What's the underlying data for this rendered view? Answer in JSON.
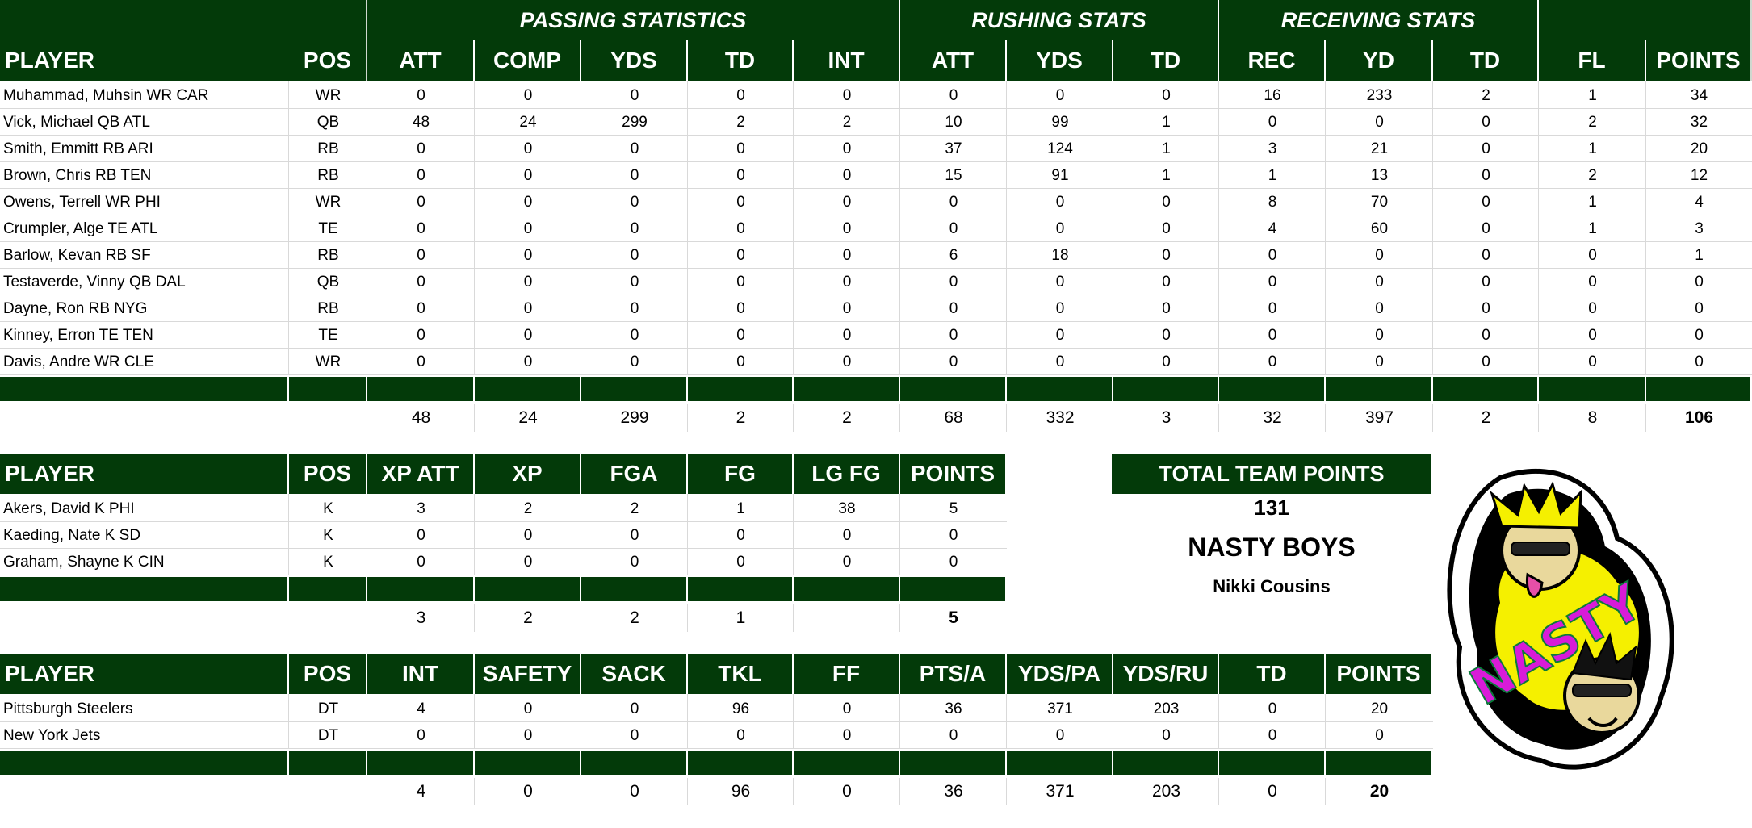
{
  "offense": {
    "groups": {
      "passing": "PASSING STATISTICS",
      "rushing": "RUSHING STATS",
      "receiving": "RECEIVING STATS"
    },
    "headers": [
      "PLAYER",
      "POS",
      "ATT",
      "COMP",
      "YDS",
      "TD",
      "INT",
      "ATT",
      "YDS",
      "TD",
      "REC",
      "YD",
      "TD",
      "FL",
      "POINTS"
    ],
    "rows": [
      [
        "Muhammad, Muhsin WR CAR",
        "WR",
        "0",
        "0",
        "0",
        "0",
        "0",
        "0",
        "0",
        "0",
        "16",
        "233",
        "2",
        "1",
        "34"
      ],
      [
        "Vick, Michael QB ATL",
        "QB",
        "48",
        "24",
        "299",
        "2",
        "2",
        "10",
        "99",
        "1",
        "0",
        "0",
        "0",
        "2",
        "32"
      ],
      [
        "Smith, Emmitt RB ARI",
        "RB",
        "0",
        "0",
        "0",
        "0",
        "0",
        "37",
        "124",
        "1",
        "3",
        "21",
        "0",
        "1",
        "20"
      ],
      [
        "Brown, Chris RB TEN",
        "RB",
        "0",
        "0",
        "0",
        "0",
        "0",
        "15",
        "91",
        "1",
        "1",
        "13",
        "0",
        "2",
        "12"
      ],
      [
        "Owens, Terrell WR PHI",
        "WR",
        "0",
        "0",
        "0",
        "0",
        "0",
        "0",
        "0",
        "0",
        "8",
        "70",
        "0",
        "1",
        "4"
      ],
      [
        "Crumpler, Alge TE ATL",
        "TE",
        "0",
        "0",
        "0",
        "0",
        "0",
        "0",
        "0",
        "0",
        "4",
        "60",
        "0",
        "1",
        "3"
      ],
      [
        "Barlow, Kevan RB SF",
        "RB",
        "0",
        "0",
        "0",
        "0",
        "0",
        "6",
        "18",
        "0",
        "0",
        "0",
        "0",
        "0",
        "1"
      ],
      [
        "Testaverde, Vinny QB DAL",
        "QB",
        "0",
        "0",
        "0",
        "0",
        "0",
        "0",
        "0",
        "0",
        "0",
        "0",
        "0",
        "0",
        "0"
      ],
      [
        "Dayne, Ron RB NYG",
        "RB",
        "0",
        "0",
        "0",
        "0",
        "0",
        "0",
        "0",
        "0",
        "0",
        "0",
        "0",
        "0",
        "0"
      ],
      [
        "Kinney, Erron TE TEN",
        "TE",
        "0",
        "0",
        "0",
        "0",
        "0",
        "0",
        "0",
        "0",
        "0",
        "0",
        "0",
        "0",
        "0"
      ],
      [
        "Davis, Andre WR CLE",
        "WR",
        "0",
        "0",
        "0",
        "0",
        "0",
        "0",
        "0",
        "0",
        "0",
        "0",
        "0",
        "0",
        "0"
      ]
    ],
    "totals": [
      "48",
      "24",
      "299",
      "2",
      "2",
      "68",
      "332",
      "3",
      "32",
      "397",
      "2",
      "8",
      "106"
    ]
  },
  "kickers": {
    "headers": [
      "PLAYER",
      "POS",
      "XP ATT",
      "XP",
      "FGA",
      "FG",
      "LG FG",
      "POINTS"
    ],
    "rows": [
      [
        "Akers, David K PHI",
        "K",
        "3",
        "2",
        "2",
        "1",
        "38",
        "5"
      ],
      [
        "Kaeding, Nate K SD",
        "K",
        "0",
        "0",
        "0",
        "0",
        "0",
        "0"
      ],
      [
        "Graham, Shayne K CIN",
        "K",
        "0",
        "0",
        "0",
        "0",
        "0",
        "0"
      ]
    ],
    "totals": [
      "3",
      "2",
      "2",
      "1",
      "",
      "5"
    ]
  },
  "defense": {
    "headers": [
      "PLAYER",
      "POS",
      "INT",
      "SAFETY",
      "SACK",
      "TKL",
      "FF",
      "PTS/A",
      "YDS/PA",
      "YDS/RU",
      "TD",
      "POINTS"
    ],
    "rows": [
      [
        "Pittsburgh Steelers",
        "DT",
        "4",
        "0",
        "0",
        "96",
        "0",
        "36",
        "371",
        "203",
        "0",
        "20"
      ],
      [
        "New York Jets",
        "DT",
        "0",
        "0",
        "0",
        "0",
        "0",
        "0",
        "0",
        "0",
        "0",
        "0"
      ]
    ],
    "totals": [
      "4",
      "0",
      "0",
      "96",
      "0",
      "36",
      "371",
      "203",
      "0",
      "20"
    ]
  },
  "team": {
    "total_label": "TOTAL TEAM POINTS",
    "total_points": "131",
    "team_name": "NASTY BOYS",
    "owner": "Nikki Cousins"
  },
  "logo": {
    "icon": "nasty-boys-sticker-logo",
    "text": "NASTY",
    "colors": {
      "primary": "#033a09",
      "splash": "#f5f000",
      "letters": "#d81bd8"
    }
  }
}
